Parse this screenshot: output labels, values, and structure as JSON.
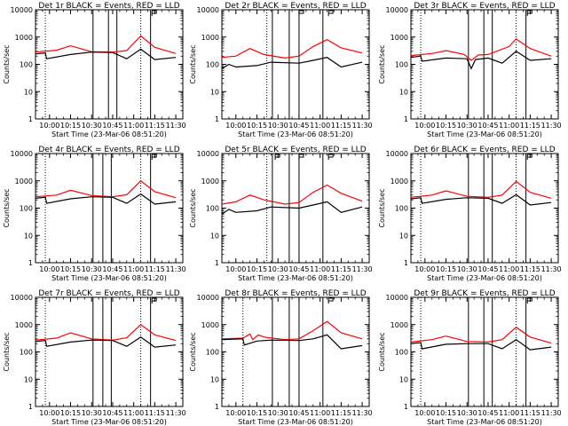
{
  "window": {
    "title": ""
  },
  "figure_layout": {
    "rows": 3,
    "cols": 3
  },
  "chart_data": [
    {
      "type": "line",
      "title": "Det 1r BLACK = Events, RED = LLD",
      "xlabel": "Start Time (23-Mar-06 08:51:20)",
      "ylabel": "Counts/sec",
      "xlim": [
        "09:50",
        "11:35"
      ],
      "ylim": [
        1,
        10000
      ],
      "yscale": "log",
      "xticks": [
        "10:00",
        "10:15",
        "10:30",
        "10:45",
        "11:00",
        "11:15",
        "11:30"
      ],
      "yticks": [
        "1",
        "10",
        "100",
        "1000",
        "10000"
      ],
      "dotted_vlines": [
        "09:57",
        "11:05"
      ],
      "solid_vlines": [
        "10:31",
        "10:42",
        "10:48",
        "11:12"
      ],
      "flag_times": [
        "11:13"
      ],
      "series": [
        {
          "color": "#ff0000",
          "x": [
            "09:50",
            "10:05",
            "10:15",
            "10:30",
            "10:45",
            "10:55",
            "11:05",
            "11:15",
            "11:30"
          ],
          "values": [
            280,
            330,
            480,
            290,
            280,
            320,
            1100,
            420,
            250
          ]
        },
        {
          "color": "#000000",
          "x": [
            "09:50",
            "09:57",
            "09:58",
            "10:15",
            "10:30",
            "10:45",
            "10:55",
            "11:05",
            "11:15",
            "11:30"
          ],
          "values": [
            240,
            260,
            160,
            230,
            280,
            270,
            160,
            360,
            150,
            180
          ]
        }
      ]
    },
    {
      "type": "line",
      "title": "Det 2r BLACK = Events, RED = LLD",
      "xlabel": "Start Time (23-Mar-06 08:51:20)",
      "ylabel": "Counts/sec",
      "xlim": [
        "09:50",
        "11:35"
      ],
      "ylim": [
        1,
        10000
      ],
      "yscale": "log",
      "xticks": [
        "10:00",
        "10:15",
        "10:30",
        "10:45",
        "11:00",
        "11:15",
        "11:30"
      ],
      "yticks": [
        "1",
        "10",
        "100",
        "1000",
        "10000"
      ],
      "dotted_vlines": [
        "10:22"
      ],
      "solid_vlines": [
        "10:26",
        "10:38",
        "10:45",
        "11:02"
      ],
      "flag_times": [
        "10:45",
        "11:06"
      ],
      "series": [
        {
          "color": "#ff0000",
          "x": [
            "09:50",
            "10:00",
            "10:10",
            "10:20",
            "10:35",
            "10:45",
            "10:55",
            "11:05",
            "11:15",
            "11:30"
          ],
          "values": [
            180,
            200,
            380,
            230,
            170,
            200,
            450,
            800,
            400,
            260
          ]
        },
        {
          "color": "#000000",
          "x": [
            "09:50",
            "09:55",
            "10:00",
            "10:15",
            "10:25",
            "10:45",
            "10:55",
            "11:05",
            "11:15",
            "11:30"
          ],
          "values": [
            70,
            100,
            80,
            90,
            120,
            110,
            140,
            180,
            80,
            120
          ]
        }
      ]
    },
    {
      "type": "line",
      "title": "Det 3r BLACK = Events, RED = LLD",
      "xlabel": "Start Time (23-Mar-06 08:51:20)",
      "ylabel": "Counts/sec",
      "xlim": [
        "09:50",
        "11:35"
      ],
      "ylim": [
        1,
        10000
      ],
      "yscale": "log",
      "xticks": [
        "10:00",
        "10:15",
        "10:30",
        "10:45",
        "11:00",
        "11:15",
        "11:30"
      ],
      "yticks": [
        "1",
        "10",
        "100",
        "1000",
        "10000"
      ],
      "dotted_vlines": [
        "09:57",
        "11:05"
      ],
      "solid_vlines": [
        "10:31",
        "10:42",
        "10:48",
        "11:12"
      ],
      "flag_times": [
        "11:13"
      ],
      "series": [
        {
          "color": "#ff0000",
          "x": [
            "09:50",
            "10:05",
            "10:15",
            "10:28",
            "10:33",
            "10:38",
            "10:45",
            "11:00",
            "11:05",
            "11:15",
            "11:30"
          ],
          "values": [
            210,
            250,
            320,
            230,
            140,
            220,
            230,
            450,
            850,
            380,
            200
          ]
        },
        {
          "color": "#000000",
          "x": [
            "09:50",
            "09:57",
            "09:58",
            "10:15",
            "10:30",
            "10:33",
            "10:36",
            "10:45",
            "10:55",
            "11:05",
            "11:15",
            "11:30"
          ],
          "values": [
            180,
            200,
            130,
            170,
            160,
            70,
            150,
            170,
            110,
            300,
            140,
            160
          ]
        }
      ]
    },
    {
      "type": "line",
      "title": "Det 4r BLACK = Events, RED = LLD",
      "xlabel": "Start Time (23-Mar-06 08:51:20)",
      "ylabel": "Counts/sec",
      "xlim": [
        "09:50",
        "11:35"
      ],
      "ylim": [
        1,
        10000
      ],
      "yscale": "log",
      "xticks": [
        "10:00",
        "10:15",
        "10:30",
        "10:45",
        "11:00",
        "11:15",
        "11:30"
      ],
      "yticks": [
        "1",
        "10",
        "100",
        "1000",
        "10000"
      ],
      "dotted_vlines": [
        "09:57",
        "11:05"
      ],
      "solid_vlines": [
        "10:31",
        "10:38",
        "10:44",
        "11:12"
      ],
      "flag_times": [
        "11:13"
      ],
      "series": [
        {
          "color": "#ff0000",
          "x": [
            "09:50",
            "10:05",
            "10:15",
            "10:30",
            "10:45",
            "10:55",
            "11:05",
            "11:15",
            "11:30"
          ],
          "values": [
            260,
            300,
            450,
            290,
            260,
            310,
            1000,
            400,
            240
          ]
        },
        {
          "color": "#000000",
          "x": [
            "09:50",
            "09:57",
            "09:58",
            "10:15",
            "10:30",
            "10:45",
            "10:55",
            "11:05",
            "11:15",
            "11:30"
          ],
          "values": [
            230,
            250,
            150,
            220,
            260,
            250,
            150,
            330,
            140,
            170
          ]
        }
      ]
    },
    {
      "type": "line",
      "title": "Det 5r BLACK = Events, RED = LLD",
      "xlabel": "Start Time (23-Mar-06 08:51:20)",
      "ylabel": "Counts/sec",
      "xlim": [
        "09:50",
        "11:35"
      ],
      "ylim": [
        1,
        10000
      ],
      "yscale": "log",
      "xticks": [
        "10:00",
        "10:15",
        "10:30",
        "10:45",
        "11:00",
        "11:15",
        "11:30"
      ],
      "yticks": [
        "1",
        "10",
        "100",
        "1000",
        "10000"
      ],
      "dotted_vlines": [
        "10:22"
      ],
      "solid_vlines": [
        "10:26",
        "10:38",
        "10:45",
        "11:02"
      ],
      "flag_times": [
        "10:28",
        "10:45",
        "11:06"
      ],
      "series": [
        {
          "color": "#ff0000",
          "x": [
            "09:50",
            "10:00",
            "10:10",
            "10:20",
            "10:35",
            "10:45",
            "10:55",
            "11:05",
            "11:15",
            "11:30"
          ],
          "values": [
            140,
            170,
            300,
            200,
            140,
            160,
            380,
            700,
            350,
            180
          ]
        },
        {
          "color": "#000000",
          "x": [
            "09:50",
            "09:55",
            "10:00",
            "10:15",
            "10:25",
            "10:45",
            "10:55",
            "11:05",
            "11:15",
            "11:30"
          ],
          "values": [
            60,
            90,
            70,
            80,
            110,
            100,
            130,
            170,
            70,
            110
          ]
        }
      ]
    },
    {
      "type": "line",
      "title": "Det 6r BLACK = Events, RED = LLD",
      "xlabel": "Start Time (23-Mar-06 08:51:20)",
      "ylabel": "Counts/sec",
      "xlim": [
        "09:50",
        "11:35"
      ],
      "ylim": [
        1,
        10000
      ],
      "yscale": "log",
      "xticks": [
        "10:00",
        "10:15",
        "10:30",
        "10:45",
        "11:00",
        "11:15",
        "11:30"
      ],
      "yticks": [
        "1",
        "10",
        "100",
        "1000",
        "10000"
      ],
      "dotted_vlines": [
        "09:57",
        "11:05"
      ],
      "solid_vlines": [
        "10:31",
        "10:42",
        "10:48",
        "11:12"
      ],
      "flag_times": [
        "11:13"
      ],
      "series": [
        {
          "color": "#ff0000",
          "x": [
            "09:50",
            "10:05",
            "10:15",
            "10:30",
            "10:45",
            "10:55",
            "11:05",
            "11:15",
            "11:30"
          ],
          "values": [
            250,
            300,
            430,
            270,
            250,
            300,
            950,
            380,
            230
          ]
        },
        {
          "color": "#000000",
          "x": [
            "09:50",
            "09:57",
            "09:58",
            "10:15",
            "10:30",
            "10:45",
            "10:55",
            "11:05",
            "11:15",
            "11:30"
          ],
          "values": [
            220,
            240,
            150,
            210,
            240,
            230,
            150,
            310,
            130,
            160
          ]
        }
      ]
    },
    {
      "type": "line",
      "title": "Det 7r BLACK = Events, RED = LLD",
      "xlabel": "Start Time (23-Mar-06 08:51:20)",
      "ylabel": "Counts/sec",
      "xlim": [
        "09:50",
        "11:35"
      ],
      "ylim": [
        1,
        10000
      ],
      "yscale": "log",
      "xticks": [
        "10:00",
        "10:15",
        "10:30",
        "10:45",
        "11:00",
        "11:15",
        "11:30"
      ],
      "yticks": [
        "1",
        "10",
        "100",
        "1000",
        "10000"
      ],
      "dotted_vlines": [
        "09:57",
        "11:05"
      ],
      "solid_vlines": [
        "10:31",
        "10:38",
        "10:44",
        "11:12"
      ],
      "flag_times": [
        "11:13"
      ],
      "series": [
        {
          "color": "#ff0000",
          "x": [
            "09:50",
            "10:05",
            "10:15",
            "10:30",
            "10:45",
            "10:55",
            "11:05",
            "11:15",
            "11:30"
          ],
          "values": [
            270,
            320,
            500,
            300,
            270,
            330,
            1000,
            420,
            260
          ]
        },
        {
          "color": "#000000",
          "x": [
            "09:50",
            "09:57",
            "09:58",
            "10:15",
            "10:30",
            "10:45",
            "10:55",
            "11:05",
            "11:15",
            "11:30"
          ],
          "values": [
            240,
            260,
            160,
            230,
            270,
            260,
            160,
            350,
            150,
            180
          ]
        }
      ]
    },
    {
      "type": "line",
      "title": "Det 8r BLACK = Events, RED = LLD",
      "xlabel": "Start Time (23-Mar-06 08:51:20)",
      "ylabel": "Counts/sec",
      "xlim": [
        "09:50",
        "11:35"
      ],
      "ylim": [
        1,
        10000
      ],
      "yscale": "log",
      "xticks": [
        "10:00",
        "10:15",
        "10:30",
        "10:45",
        "11:00",
        "11:15",
        "11:30"
      ],
      "yticks": [
        "1",
        "10",
        "100",
        "1000",
        "10000"
      ],
      "dotted_vlines": [
        "10:05"
      ],
      "solid_vlines": [
        "10:26",
        "10:38",
        "10:45",
        "11:02"
      ],
      "flag_times": [
        "11:06"
      ],
      "series": [
        {
          "color": "#ff0000",
          "x": [
            "09:50",
            "10:05",
            "10:10",
            "10:12",
            "10:16",
            "10:20",
            "10:35",
            "10:45",
            "10:55",
            "11:05",
            "11:15",
            "11:30"
          ],
          "values": [
            300,
            320,
            450,
            280,
            420,
            350,
            280,
            300,
            600,
            1300,
            500,
            300
          ]
        },
        {
          "color": "#000000",
          "x": [
            "09:50",
            "10:05",
            "10:06",
            "10:15",
            "10:25",
            "10:45",
            "10:55",
            "11:05",
            "11:15",
            "11:30"
          ],
          "values": [
            280,
            300,
            180,
            250,
            270,
            260,
            300,
            420,
            130,
            170
          ]
        }
      ]
    },
    {
      "type": "line",
      "title": "Det 9r BLACK = Events, RED = LLD",
      "xlabel": "Start Time (23-Mar-06 08:51:20)",
      "ylabel": "Counts/sec",
      "xlim": [
        "09:50",
        "11:35"
      ],
      "ylim": [
        1,
        10000
      ],
      "yscale": "log",
      "xticks": [
        "10:00",
        "10:15",
        "10:30",
        "10:45",
        "11:00",
        "11:15",
        "11:30"
      ],
      "yticks": [
        "1",
        "10",
        "100",
        "1000",
        "10000"
      ],
      "dotted_vlines": [
        "09:57",
        "11:05"
      ],
      "solid_vlines": [
        "10:31",
        "10:42",
        "10:48",
        "11:12"
      ],
      "flag_times": [
        "11:13"
      ],
      "series": [
        {
          "color": "#ff0000",
          "x": [
            "09:50",
            "10:05",
            "10:15",
            "10:30",
            "10:45",
            "10:55",
            "11:05",
            "11:15",
            "11:30"
          ],
          "values": [
            230,
            280,
            380,
            240,
            230,
            280,
            800,
            350,
            210
          ]
        },
        {
          "color": "#000000",
          "x": [
            "09:50",
            "09:57",
            "09:58",
            "10:15",
            "10:30",
            "10:45",
            "10:55",
            "11:05",
            "11:15",
            "11:30"
          ],
          "values": [
            200,
            220,
            130,
            190,
            200,
            200,
            130,
            280,
            120,
            150
          ]
        }
      ]
    }
  ]
}
